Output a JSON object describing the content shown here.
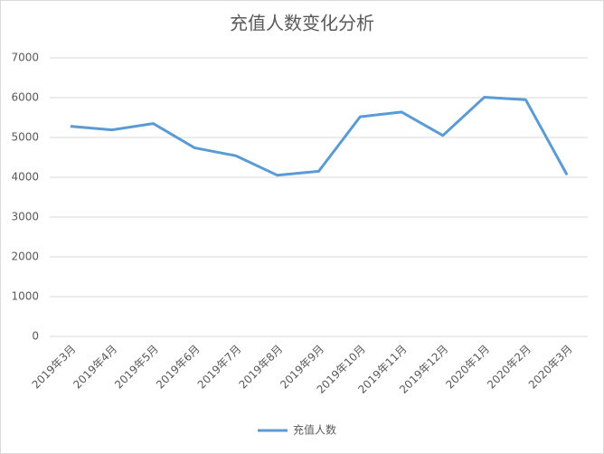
{
  "chart_data": {
    "type": "line",
    "title": "充值人数变化分析",
    "categories": [
      "2019年3月",
      "2019年4月",
      "2019年5月",
      "2019年6月",
      "2019年7月",
      "2019年8月",
      "2019年9月",
      "2019年10月",
      "2019年11月",
      "2019年12月",
      "2020年1月",
      "2020年2月",
      "2020年3月"
    ],
    "series": [
      {
        "name": "充值人数",
        "color": "#5b9bd5",
        "values": [
          5280,
          5190,
          5350,
          4740,
          4540,
          4050,
          4150,
          5520,
          5640,
          5050,
          6010,
          5950,
          4060
        ]
      }
    ],
    "ylim": [
      0,
      7000
    ],
    "yticks": [
      0,
      1000,
      2000,
      3000,
      4000,
      5000,
      6000,
      7000
    ],
    "grid": true,
    "legend": "bottom"
  }
}
